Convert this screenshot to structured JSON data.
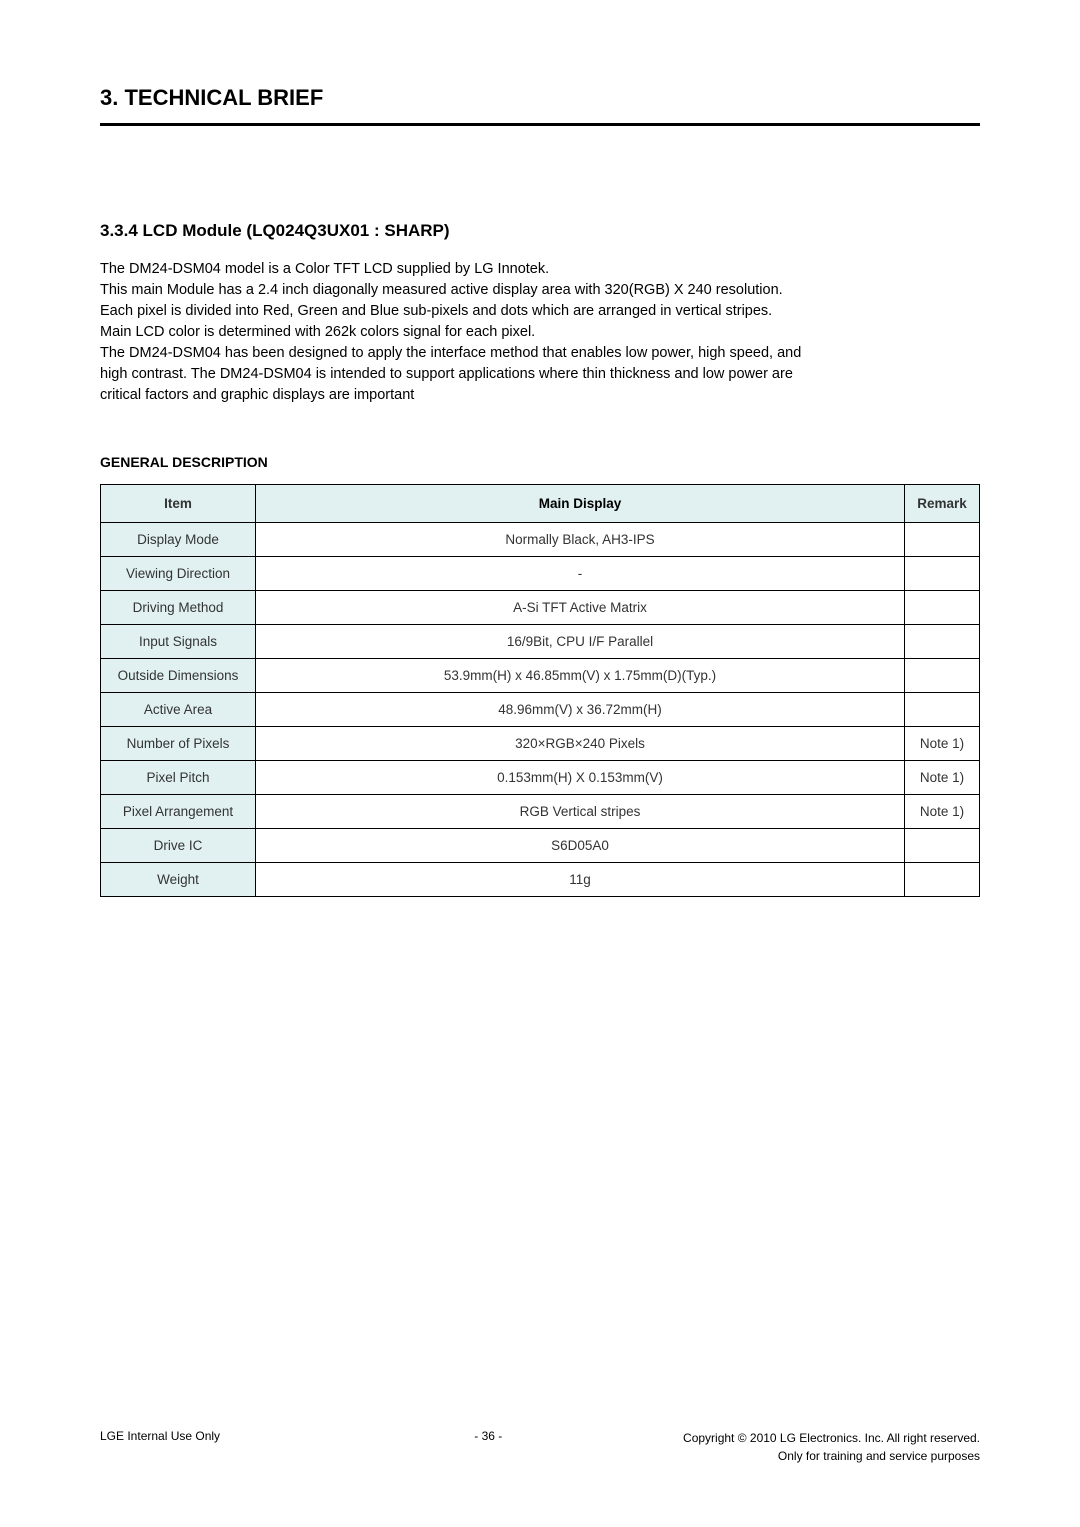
{
  "header": {
    "section_title": "3. TECHNICAL BRIEF"
  },
  "subsection": {
    "title": "3.3.4 LCD Module (LQ024Q3UX01 : SHARP)",
    "body": "The  DM24-DSM04 model is a Color TFT LCD supplied by LG  Innotek.\nThis main Module has a 2.4 inch diagonally measured active display area with 320(RGB) X 240 resolution.\nEach pixel is divided into Red, Green and Blue sub-pixels and dots which are arranged in vertical stripes.\nMain LCD color is determined with 262k colors signal for each pixel.\nThe DM24-DSM04 has been designed to apply the interface method that enables low power, high speed, and\n high contrast. The DM24-DSM04 is intended to support applications where thin thickness and low power are\n critical factors and graphic displays are important"
  },
  "table": {
    "heading": "GENERAL DESCRIPTION",
    "columns": [
      "Item",
      "Main Display",
      "Remark"
    ],
    "rows": [
      {
        "item": "Display Mode",
        "main": "Normally Black, AH3-IPS",
        "remark": ""
      },
      {
        "item": "Viewing Direction",
        "main": "-",
        "remark": ""
      },
      {
        "item": "Driving Method",
        "main": "A-Si TFT Active Matrix",
        "remark": ""
      },
      {
        "item": "Input Signals",
        "main": "16/9Bit, CPU I/F Parallel",
        "remark": ""
      },
      {
        "item": "Outside Dimensions",
        "main": "53.9mm(H) x 46.85mm(V) x 1.75mm(D)(Typ.)",
        "remark": ""
      },
      {
        "item": "Active Area",
        "main": "48.96mm(V) x 36.72mm(H)",
        "remark": ""
      },
      {
        "item": "Number of Pixels",
        "main": "320×RGB×240 Pixels",
        "remark": "Note 1)"
      },
      {
        "item": "Pixel Pitch",
        "main": "0.153mm(H) X 0.153mm(V)",
        "remark": "Note 1)"
      },
      {
        "item": "Pixel Arrangement",
        "main": "RGB Vertical stripes",
        "remark": "Note 1)"
      },
      {
        "item": "Drive IC",
        "main": "S6D05A0",
        "remark": ""
      },
      {
        "item": "Weight",
        "main": "11g",
        "remark": ""
      }
    ]
  },
  "footer": {
    "left": "LGE Internal Use Only",
    "center": "- 36 -",
    "right_line1": "Copyright © 2010 LG Electronics. Inc. All right reserved.",
    "right_line2": "Only for training and service purposes"
  }
}
